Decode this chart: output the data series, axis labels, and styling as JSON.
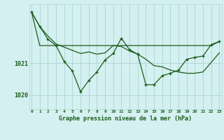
{
  "title": "Graphe pression niveau de la mer (hPa)",
  "bg_color": "#d4f0f0",
  "grid_color": "#b0d8d8",
  "line_color": "#1a5c1a",
  "marker_color": "#1a5c1a",
  "text_color": "#1a5c1a",
  "label_color": "#1a5c1a",
  "x_labels": [
    "0",
    "1",
    "2",
    "3",
    "4",
    "5",
    "6",
    "7",
    "8",
    "9",
    "10",
    "11",
    "12",
    "13",
    "14",
    "15",
    "16",
    "17",
    "18",
    "19",
    "20",
    "21",
    "22",
    "23"
  ],
  "ylim_min": 1019.55,
  "ylim_max": 1022.85,
  "series_fluctuating": [
    1022.6,
    1022.15,
    1021.75,
    1021.55,
    1021.05,
    1020.75,
    1020.1,
    1020.45,
    1020.72,
    1021.1,
    1021.3,
    1021.78,
    1021.42,
    1021.28,
    1020.32,
    1020.32,
    1020.6,
    1020.68,
    1020.78,
    1021.12,
    1021.18,
    1021.22,
    1021.58,
    1021.68
  ],
  "series_smooth": [
    1022.6,
    1022.15,
    1021.85,
    1021.6,
    1021.5,
    1021.4,
    1021.3,
    1021.35,
    1021.28,
    1021.32,
    1021.55,
    1021.52,
    1021.38,
    1021.28,
    1021.12,
    1020.92,
    1020.88,
    1020.78,
    1020.72,
    1020.68,
    1020.68,
    1020.72,
    1021.02,
    1021.32
  ],
  "series_flat": [
    1022.6,
    1021.55,
    1021.55,
    1021.55,
    1021.55,
    1021.55,
    1021.55,
    1021.55,
    1021.55,
    1021.55,
    1021.55,
    1021.55,
    1021.55,
    1021.55,
    1021.55,
    1021.55,
    1021.55,
    1021.55,
    1021.55,
    1021.55,
    1021.55,
    1021.55,
    1021.55,
    1021.68
  ]
}
